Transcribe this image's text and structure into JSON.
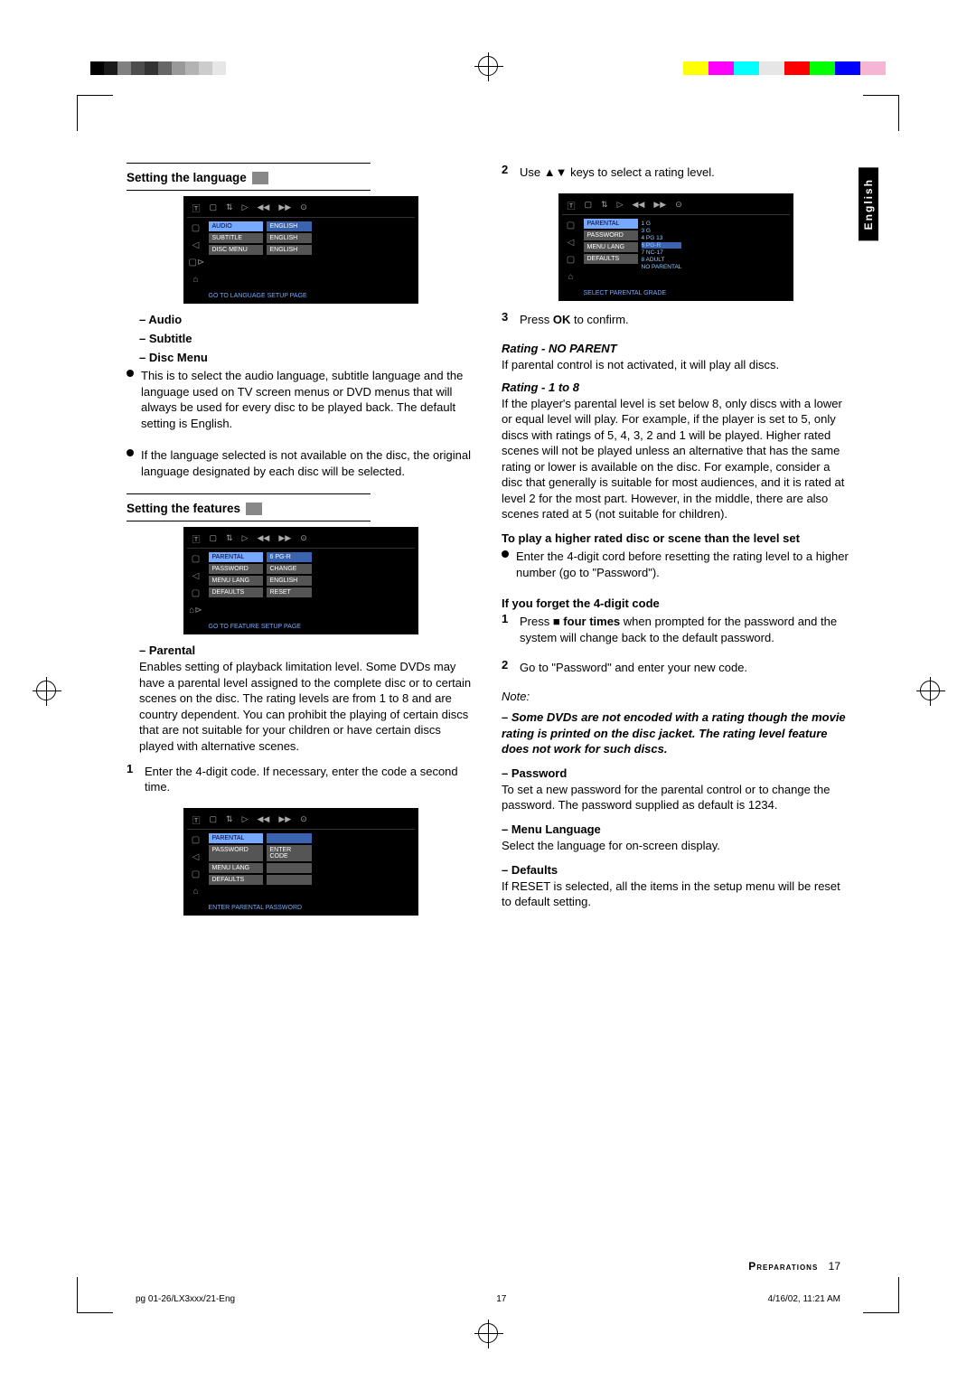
{
  "printMarks": {
    "grayscale": [
      "#000000",
      "#1a1a1a",
      "#808080",
      "#4d4d4d",
      "#333333",
      "#666666",
      "#999999",
      "#b3b3b3",
      "#cccccc",
      "#e6e6e6",
      "#ffffff"
    ],
    "colors": [
      "#ffff00",
      "#ff00ff",
      "#00ffff",
      "#e6e6e6",
      "#ff0000",
      "#00ff00",
      "#0000ff",
      "#f7b5d4"
    ]
  },
  "langTab": "English",
  "leftCol": {
    "h1": "Setting the language",
    "sub1": "– Audio",
    "sub2": "– Subtitle",
    "sub3": "– Disc Menu",
    "p1": "This is to select the audio language, subtitle language and the language used on TV screen menus or DVD menus that will always be used for every disc to be played back. The default setting is English.",
    "p2": "If the language selected is not available on the disc, the original language designated by each disc will be selected.",
    "h2": "Setting the features",
    "sub4": "– Parental",
    "p3": "Enables setting of playback limitation level. Some DVDs may have a parental level assigned to the complete disc or to certain scenes on the disc. The rating levels are from 1 to 8 and are country dependent. You can prohibit the playing of certain discs that are not suitable for your children or have certain discs played with alternative scenes.",
    "n1": "1",
    "p4": "Enter the 4-digit code. If necessary, enter the code a second time.",
    "screen1": {
      "rows": [
        {
          "l": "AUDIO",
          "r": "ENGLISH"
        },
        {
          "l": "SUBTITLE",
          "r": "ENGLISH"
        },
        {
          "l": "DISC MENU",
          "r": "ENGLISH"
        }
      ],
      "footer": "GO TO LANGUAGE SETUP PAGE"
    },
    "screen2": {
      "rows": [
        {
          "l": "PARENTAL",
          "r": "6 PG-R"
        },
        {
          "l": "PASSWORD",
          "r": "CHANGE"
        },
        {
          "l": "MENU LANG",
          "r": "ENGLISH"
        },
        {
          "l": "DEFAULTS",
          "r": "RESET"
        }
      ],
      "footer": "GO TO FEATURE SETUP PAGE"
    },
    "screen3": {
      "rows": [
        {
          "l": "PARENTAL",
          "r": ""
        },
        {
          "l": "PASSWORD",
          "r": "ENTER CODE"
        },
        {
          "l": "MENU LANG",
          "r": ""
        },
        {
          "l": "DEFAULTS",
          "r": ""
        }
      ],
      "footer": "ENTER PARENTAL PASSWORD"
    }
  },
  "rightCol": {
    "n2": "2",
    "p5a": "Use ",
    "p5b": " keys to select a rating level.",
    "screen4": {
      "rows": [
        {
          "l": "PARENTAL"
        },
        {
          "l": "PASSWORD"
        },
        {
          "l": "MENU LANG"
        },
        {
          "l": "DEFAULTS"
        }
      ],
      "ratings": [
        "1 G",
        "3 G",
        "4 PG 13",
        "6 PG-R",
        "7 NC-17",
        "8 ADULT",
        "NO PARENTAL"
      ],
      "footer": "SELECT PARENTAL GRADE"
    },
    "n3": "3",
    "p6a": "Press ",
    "p6b": "OK",
    "p6c": " to confirm.",
    "h3": "Rating - NO PARENT",
    "p7": "If parental control is not activated, it will play all discs.",
    "h4": "Rating - 1 to 8",
    "p8": "If the player's parental level is set below 8, only discs with a lower or equal level will play. For example, if the player is set to 5, only discs with ratings of 5, 4, 3, 2 and 1 will be played. Higher rated scenes will not be played unless an alternative that has the same rating or lower is available on the disc. For example, consider a disc that generally is suitable for most audiences, and it is rated at level 2 for the most part. However, in the middle, there are also scenes rated at 5 (not suitable for children).",
    "h5": "To play a higher rated disc or scene than the level set",
    "p9": "Enter the 4-digit cord before resetting the rating level to a higher number (go to \"Password\").",
    "h6": "If you forget the 4-digit code",
    "n4": "1",
    "p10a": "Press ",
    "p10b": "■ four times",
    "p10c": " when prompted for the password and the system will change back to the default password.",
    "n5": "2",
    "p11": "Go to \"Password\" and enter your new code.",
    "noteLabel": "Note:",
    "note": "– Some DVDs are not encoded with a rating though the movie rating is printed on the disc jacket. The rating level feature does not work for such discs.",
    "h7": "– Password",
    "p12": "To set a new password for the parental control or to change the password. The password supplied as default is 1234.",
    "h8": "– Menu Language",
    "p13": "Select the language for on-screen display.",
    "h9": "– Defaults",
    "p14": "If RESET is selected, all the items in the setup menu will be reset to default setting."
  },
  "footer": {
    "section": "Preparations",
    "page": "17"
  },
  "printFoot": {
    "left": "pg 01-26/LX3xxx/21-Eng",
    "mid": "17",
    "right": "4/16/02, 11:21 AM"
  }
}
